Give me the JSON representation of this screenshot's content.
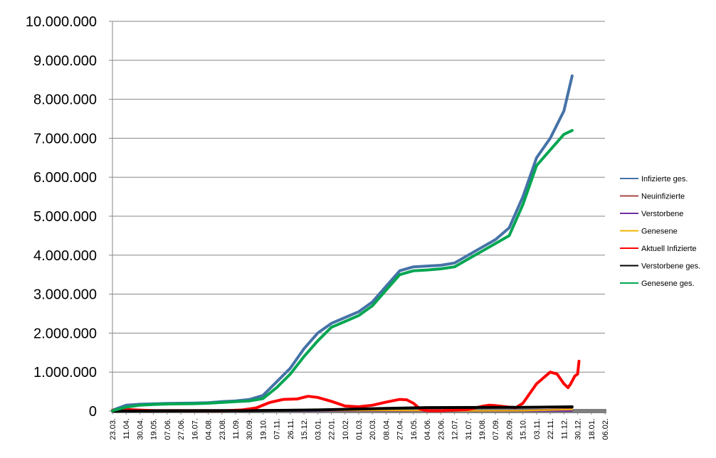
{
  "chart_data": {
    "type": "line",
    "title": "",
    "xlabel": "",
    "ylabel": "",
    "ylim": [
      0,
      10000000
    ],
    "y_ticks": [
      "0",
      "1.000.000",
      "2.000.000",
      "3.000.000",
      "4.000.000",
      "5.000.000",
      "6.000.000",
      "7.000.000",
      "8.000.000",
      "9.000.000",
      "10.000.000"
    ],
    "y_tick_values": [
      0,
      1000000,
      2000000,
      3000000,
      4000000,
      5000000,
      6000000,
      7000000,
      8000000,
      9000000,
      10000000
    ],
    "x_ticks": [
      "23.03.",
      "11.04.",
      "30.04.",
      "19.05.",
      "07.06.",
      "27.06.",
      "16.07.",
      "04.08.",
      "23.08.",
      "11.09.",
      "30.09.",
      "19.10.",
      "07.11.",
      "26.11.",
      "15.12.",
      "03.01.",
      "22.01.",
      "10.02.",
      "01.03.",
      "20.03.",
      "08.04.",
      "27.04.",
      "16.05.",
      "04.06.",
      "23.06.",
      "12.07.",
      "31.07.",
      "19.08.",
      "07.09.",
      "26.09.",
      "15.10.",
      "03.11.",
      "22.11.",
      "11.12.",
      "30.12.",
      "18.01.",
      "06.02."
    ],
    "grid": true,
    "legend_position": "right",
    "series": [
      {
        "name": "Infizierte ges.",
        "color": "#4572A7",
        "points": [
          [
            0,
            20000
          ],
          [
            1,
            150000
          ],
          [
            2,
            175000
          ],
          [
            3,
            185000
          ],
          [
            4,
            195000
          ],
          [
            5,
            200000
          ],
          [
            6,
            205000
          ],
          [
            7,
            215000
          ],
          [
            8,
            240000
          ],
          [
            9,
            260000
          ],
          [
            10,
            295000
          ],
          [
            11,
            400000
          ],
          [
            12,
            750000
          ],
          [
            13,
            1100000
          ],
          [
            14,
            1600000
          ],
          [
            15,
            2000000
          ],
          [
            16,
            2250000
          ],
          [
            17,
            2400000
          ],
          [
            18,
            2550000
          ],
          [
            19,
            2800000
          ],
          [
            20,
            3200000
          ],
          [
            21,
            3600000
          ],
          [
            22,
            3700000
          ],
          [
            23,
            3720000
          ],
          [
            24,
            3740000
          ],
          [
            25,
            3800000
          ],
          [
            26,
            4000000
          ],
          [
            27,
            4200000
          ],
          [
            28,
            4400000
          ],
          [
            29,
            4700000
          ],
          [
            30,
            5500000
          ],
          [
            31,
            6500000
          ],
          [
            32,
            7000000
          ],
          [
            33,
            7700000
          ],
          [
            33.6,
            8600000
          ]
        ]
      },
      {
        "name": "Neuinfizierte",
        "color": "#AA4643",
        "points": [
          [
            0,
            2000
          ],
          [
            5,
            1000
          ],
          [
            10,
            3000
          ],
          [
            15,
            15000
          ],
          [
            20,
            10000
          ],
          [
            25,
            4000
          ],
          [
            30,
            15000
          ],
          [
            33.6,
            60000
          ]
        ]
      },
      {
        "name": "Verstorbene",
        "color": "#7030A0",
        "points": [
          [
            0,
            100
          ],
          [
            10,
            100
          ],
          [
            20,
            200
          ],
          [
            30,
            200
          ],
          [
            33.6,
            300
          ]
        ]
      },
      {
        "name": "Genesene",
        "color": "#F0B400",
        "points": [
          [
            0,
            1000
          ],
          [
            10,
            2000
          ],
          [
            15,
            15000
          ],
          [
            20,
            15000
          ],
          [
            25,
            6000
          ],
          [
            30,
            10000
          ],
          [
            33.6,
            40000
          ]
        ]
      },
      {
        "name": "Aktuell Infizierte",
        "color": "#FF0000",
        "points": [
          [
            0,
            20000
          ],
          [
            1,
            40000
          ],
          [
            3,
            10000
          ],
          [
            8,
            5000
          ],
          [
            9.5,
            30000
          ],
          [
            10.5,
            80000
          ],
          [
            11.5,
            220000
          ],
          [
            12.5,
            300000
          ],
          [
            13.5,
            310000
          ],
          [
            14.3,
            380000
          ],
          [
            15,
            350000
          ],
          [
            16,
            250000
          ],
          [
            17,
            130000
          ],
          [
            18,
            110000
          ],
          [
            19,
            150000
          ],
          [
            20,
            230000
          ],
          [
            21,
            300000
          ],
          [
            21.5,
            290000
          ],
          [
            22,
            200000
          ],
          [
            22.5,
            50000
          ],
          [
            23,
            10000
          ],
          [
            24,
            10000
          ],
          [
            26,
            40000
          ],
          [
            27,
            120000
          ],
          [
            27.5,
            150000
          ],
          [
            28,
            140000
          ],
          [
            29,
            100000
          ],
          [
            29.5,
            90000
          ],
          [
            30,
            200000
          ],
          [
            31,
            700000
          ],
          [
            32,
            1000000
          ],
          [
            32.5,
            950000
          ],
          [
            33,
            700000
          ],
          [
            33.3,
            600000
          ],
          [
            33.5,
            700000
          ],
          [
            33.8,
            900000
          ],
          [
            34,
            950000
          ],
          [
            34.1,
            1280000
          ]
        ]
      },
      {
        "name": "Verstorbene ges.",
        "color": "#000000",
        "points": [
          [
            0,
            0
          ],
          [
            10,
            10000
          ],
          [
            15,
            30000
          ],
          [
            20,
            70000
          ],
          [
            23,
            90000
          ],
          [
            27,
            93000
          ],
          [
            30,
            95000
          ],
          [
            33.6,
            110000
          ]
        ]
      },
      {
        "name": "Genesene ges.",
        "color": "#00A651",
        "points": [
          [
            0,
            10000
          ],
          [
            1,
            100000
          ],
          [
            2,
            150000
          ],
          [
            3,
            170000
          ],
          [
            4,
            180000
          ],
          [
            5,
            185000
          ],
          [
            6,
            190000
          ],
          [
            7,
            200000
          ],
          [
            8,
            220000
          ],
          [
            9,
            240000
          ],
          [
            10,
            260000
          ],
          [
            11,
            320000
          ],
          [
            12,
            600000
          ],
          [
            13,
            950000
          ],
          [
            14,
            1400000
          ],
          [
            15,
            1800000
          ],
          [
            16,
            2150000
          ],
          [
            17,
            2300000
          ],
          [
            18,
            2450000
          ],
          [
            19,
            2700000
          ],
          [
            20,
            3100000
          ],
          [
            21,
            3500000
          ],
          [
            22,
            3600000
          ],
          [
            23,
            3620000
          ],
          [
            24,
            3650000
          ],
          [
            25,
            3700000
          ],
          [
            26,
            3900000
          ],
          [
            27,
            4100000
          ],
          [
            28,
            4300000
          ],
          [
            29,
            4500000
          ],
          [
            30,
            5300000
          ],
          [
            31,
            6300000
          ],
          [
            32,
            6700000
          ],
          [
            33,
            7100000
          ],
          [
            33.6,
            7200000
          ]
        ]
      }
    ]
  }
}
